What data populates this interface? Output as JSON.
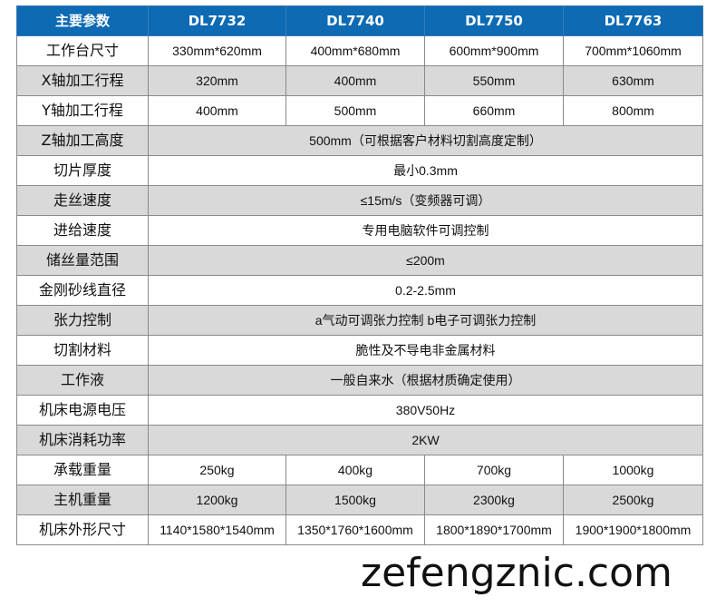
{
  "header": [
    "主要参数",
    "DL7732",
    "DL7740",
    "DL7750",
    "DL7763"
  ],
  "rows": [
    {
      "label": "工作台尺寸",
      "values": [
        "330mm*620mm",
        "400mm*680mm",
        "600mm*900mm",
        "700mm*1060mm"
      ]
    },
    {
      "label": "X轴加工行程",
      "values": [
        "320mm",
        "400mm",
        "550mm",
        "630mm"
      ]
    },
    {
      "label": "Y轴加工行程",
      "values": [
        "400mm",
        "500mm",
        "660mm",
        "800mm"
      ]
    },
    {
      "label": "Z轴加工高度",
      "values": [
        "500mm（可根据客户材料切割高度定制）"
      ]
    },
    {
      "label": "切片厚度",
      "values": [
        "最小0.3mm"
      ]
    },
    {
      "label": "走丝速度",
      "values": [
        "≤15m/s（变频器可调）"
      ]
    },
    {
      "label": "进给速度",
      "values": [
        "专用电脑软件可调控制"
      ]
    },
    {
      "label": "储丝量范围",
      "values": [
        "≤200m"
      ]
    },
    {
      "label": "金刚砂线直径",
      "values": [
        "0.2-2.5mm"
      ]
    },
    {
      "label": "张力控制",
      "values": [
        "a气动可调张力控制 b电子可调张力控制"
      ]
    },
    {
      "label": "切割材料",
      "values": [
        "脆性及不导电非金属材料"
      ]
    },
    {
      "label": "工作液",
      "values": [
        "一般自来水（根据材质确定使用）"
      ]
    },
    {
      "label": "机床电源电压",
      "values": [
        "380V50Hz"
      ]
    },
    {
      "label": "机床消耗功率",
      "values": [
        "2KW"
      ]
    },
    {
      "label": "承载重量",
      "values": [
        "250kg",
        "400kg",
        "700kg",
        "1000kg"
      ]
    },
    {
      "label": "主机重量",
      "values": [
        "1200kg",
        "1500kg",
        "2300kg",
        "2500kg"
      ]
    },
    {
      "label": "机床外形尺寸",
      "values": [
        "1140*1580*1540mm",
        "1350*1760*1600mm",
        "1800*1890*1700mm",
        "1900*1900*1800mm"
      ]
    }
  ],
  "watermark": "zefengznic.com",
  "colors": {
    "header_bg": "#0d6ab3",
    "row_alt_bg": "#d9d9d9"
  }
}
